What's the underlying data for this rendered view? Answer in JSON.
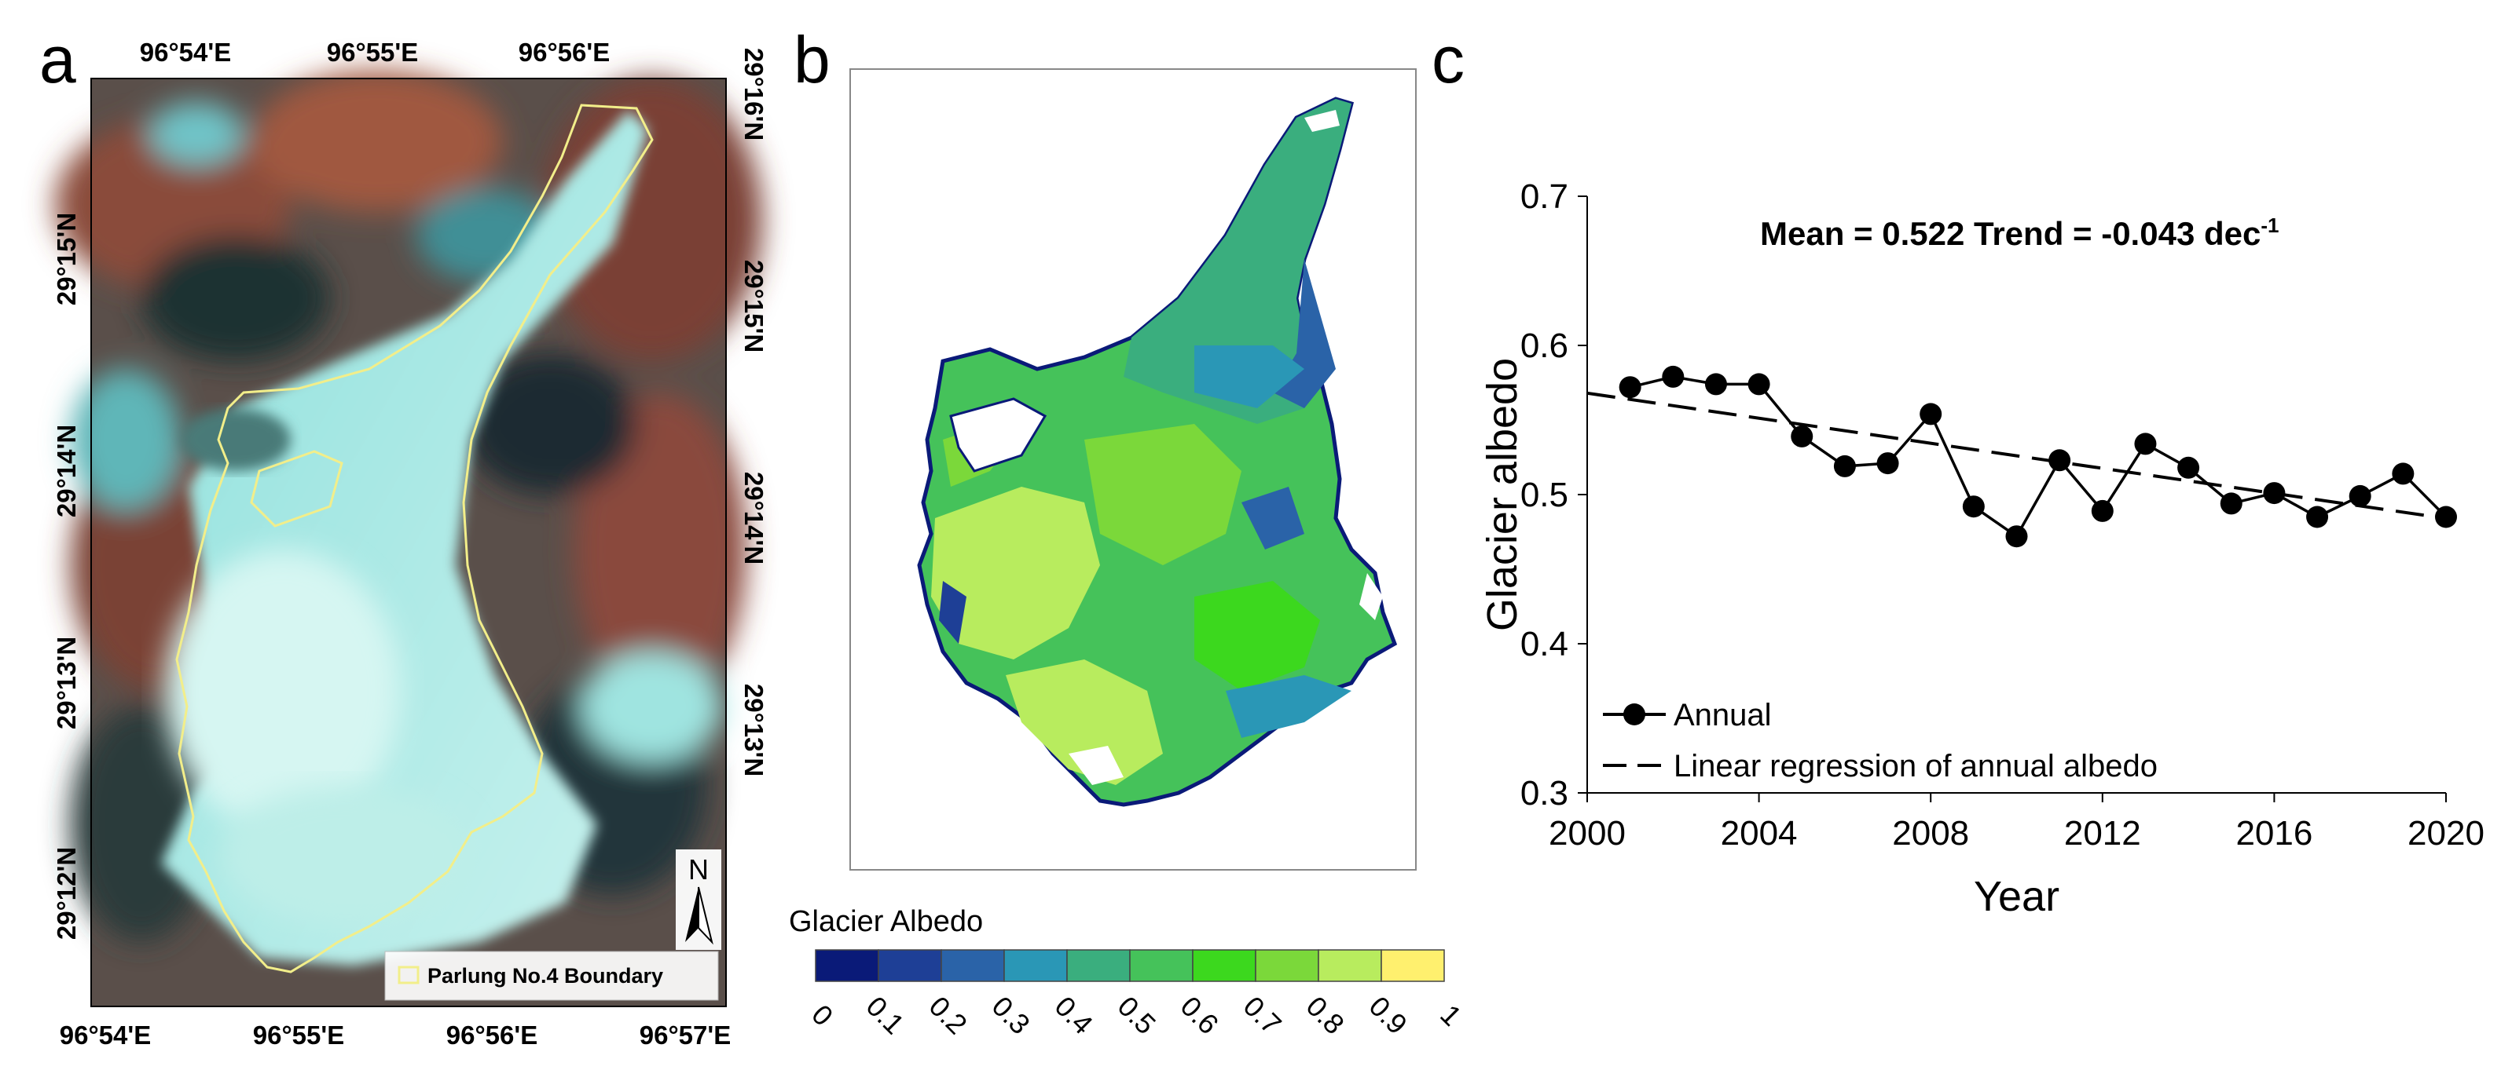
{
  "panels": {
    "a": {
      "letter": "a",
      "top_ticks": [
        "96°54'E",
        "96°55'E",
        "96°56'E"
      ],
      "bottom_ticks": [
        "96°54'E",
        "96°55'E",
        "96°56'E",
        "96°57'E"
      ],
      "left_ticks": [
        "29°15'N",
        "29°14'N",
        "29°13'N",
        "29°12'N"
      ],
      "right_ticks": [
        "29°16'N",
        "29°15'N",
        "29°14'N",
        "29°13'N"
      ],
      "north_label": "N",
      "legend_label": "Parlung No.4 Boundary",
      "boundary_color": "#f2ee8a"
    },
    "b": {
      "letter": "b",
      "colorbar_title": "Glacier Albedo",
      "colorbar_ticks": [
        "0",
        "0.1",
        "0.2",
        "0.3",
        "0.4",
        "0.5",
        "0.6",
        "0.7",
        "0.8",
        "0.9",
        "1"
      ],
      "colorbar_colors": [
        "#0a1a78",
        "#1e3f96",
        "#2a63a8",
        "#2a97b6",
        "#3aae7e",
        "#45c25a",
        "#3cd81e",
        "#7bd83a",
        "#b8ec5e",
        "#fff06e"
      ]
    },
    "c": {
      "letter": "c",
      "annotation": "Mean = 0.522 Trend = -0.043 dec",
      "annotation_sup": "-1",
      "legend": {
        "annual": "Annual",
        "regression": "Linear regression of annual albedo"
      }
    }
  },
  "chart_data": {
    "type": "line",
    "xlabel": "Year",
    "ylabel": "Glacier albedo",
    "xlim": [
      2000,
      2020
    ],
    "ylim": [
      0.3,
      0.7
    ],
    "xticks": [
      2000,
      2004,
      2008,
      2012,
      2016,
      2020
    ],
    "yticks": [
      "0.3",
      "0.4",
      "0.5",
      "0.6",
      "0.7"
    ],
    "grid": false,
    "legend_position": "bottom-left",
    "series": [
      {
        "name": "Annual",
        "x": [
          2001,
          2002,
          2003,
          2004,
          2005,
          2006,
          2007,
          2008,
          2009,
          2010,
          2011,
          2012,
          2013,
          2014,
          2015,
          2016,
          2017,
          2018,
          2019,
          2020
        ],
        "y": [
          0.572,
          0.579,
          0.574,
          0.574,
          0.539,
          0.519,
          0.521,
          0.554,
          0.492,
          0.472,
          0.523,
          0.489,
          0.534,
          0.518,
          0.494,
          0.501,
          0.485,
          0.499,
          0.514,
          0.485
        ]
      },
      {
        "name": "Linear regression of annual albedo",
        "style": "dashed",
        "x": [
          2000,
          2020
        ],
        "y": [
          0.568,
          0.484
        ]
      }
    ]
  }
}
